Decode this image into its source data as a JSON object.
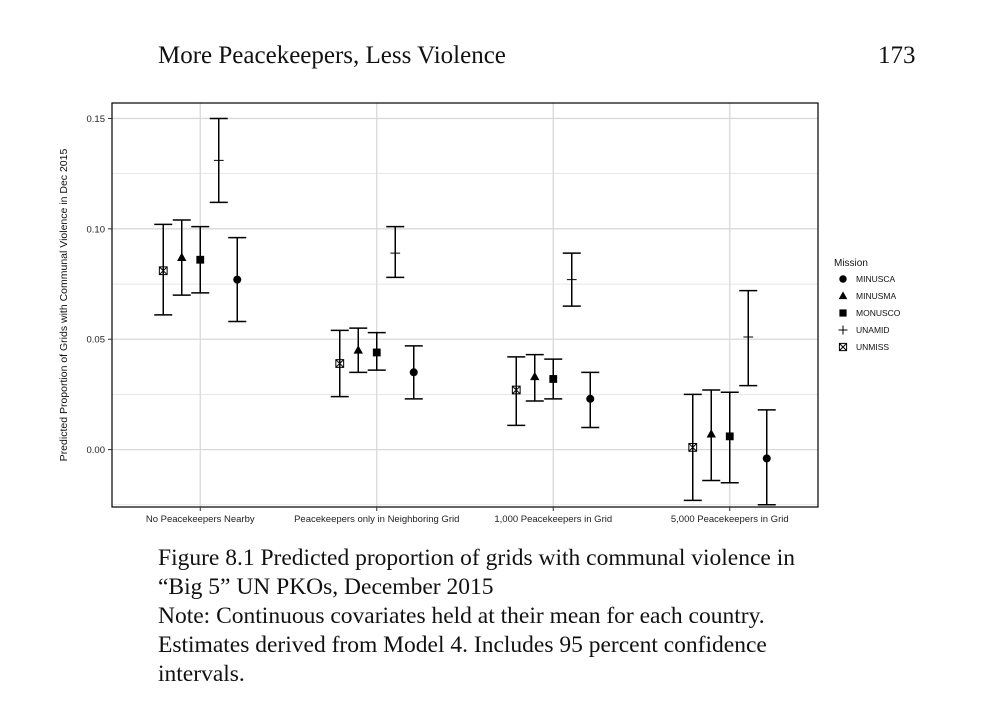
{
  "page": {
    "running_title": "More Peacekeepers, Less Violence",
    "page_number": "173"
  },
  "caption": {
    "line1": "Figure 8.1  Predicted proportion of grids with communal violence in",
    "line2": "“Big 5” UN PKOs, December 2015",
    "line3": "Note: Continuous covariates held at their mean for each country.",
    "line4": "Estimates derived from Model 4. Includes 95 percent confidence",
    "line5": "intervals."
  },
  "chart_data": {
    "type": "scatter",
    "subtype": "point-with-95pct-confidence-intervals",
    "title": "",
    "xlabel": "",
    "ylabel": "Predicted Proportion of Grids with Communal Violence in Dec 2015",
    "ylim": [
      -0.026,
      0.157
    ],
    "yticks": [
      0.0,
      0.05,
      0.1,
      0.15
    ],
    "ytick_labels": [
      "0.00",
      "0.05",
      "0.10",
      "0.15"
    ],
    "grid": true,
    "legend": {
      "title": "Mission",
      "position": "right"
    },
    "categories": [
      "No Peacekeepers Nearby",
      "Peacekeepers only in Neighboring Grid",
      "1,000 Peacekeepers in Grid",
      "5,000 Peacekeepers in Grid"
    ],
    "series_order": [
      "UNMISS",
      "MINUSMA",
      "MONUSCO",
      "UNAMID",
      "MINUSCA"
    ],
    "series": [
      {
        "name": "MINUSCA",
        "marker": "circle",
        "estimate": [
          0.077,
          0.035,
          0.023,
          -0.004
        ],
        "lower": [
          0.058,
          0.023,
          0.01,
          -0.025
        ],
        "upper": [
          0.096,
          0.047,
          0.035,
          0.018
        ]
      },
      {
        "name": "MINUSMA",
        "marker": "triangle",
        "estimate": [
          0.087,
          0.045,
          0.033,
          0.007
        ],
        "lower": [
          0.07,
          0.035,
          0.022,
          -0.014
        ],
        "upper": [
          0.104,
          0.055,
          0.043,
          0.027
        ]
      },
      {
        "name": "MONUSCO",
        "marker": "square",
        "estimate": [
          0.086,
          0.044,
          0.032,
          0.006
        ],
        "lower": [
          0.071,
          0.036,
          0.023,
          -0.015
        ],
        "upper": [
          0.101,
          0.053,
          0.041,
          0.026
        ]
      },
      {
        "name": "UNAMID",
        "marker": "plus",
        "estimate": [
          0.131,
          0.089,
          0.077,
          0.051
        ],
        "lower": [
          0.112,
          0.078,
          0.065,
          0.029
        ],
        "upper": [
          0.15,
          0.101,
          0.089,
          0.072
        ]
      },
      {
        "name": "UNMISS",
        "marker": "boxed-x",
        "estimate": [
          0.081,
          0.039,
          0.027,
          0.001
        ],
        "lower": [
          0.061,
          0.024,
          0.011,
          -0.023
        ],
        "upper": [
          0.102,
          0.054,
          0.042,
          0.025
        ]
      }
    ],
    "colors": {
      "marks": "#000000",
      "grid": "#d9d9d9",
      "panel": "#ffffff"
    }
  }
}
